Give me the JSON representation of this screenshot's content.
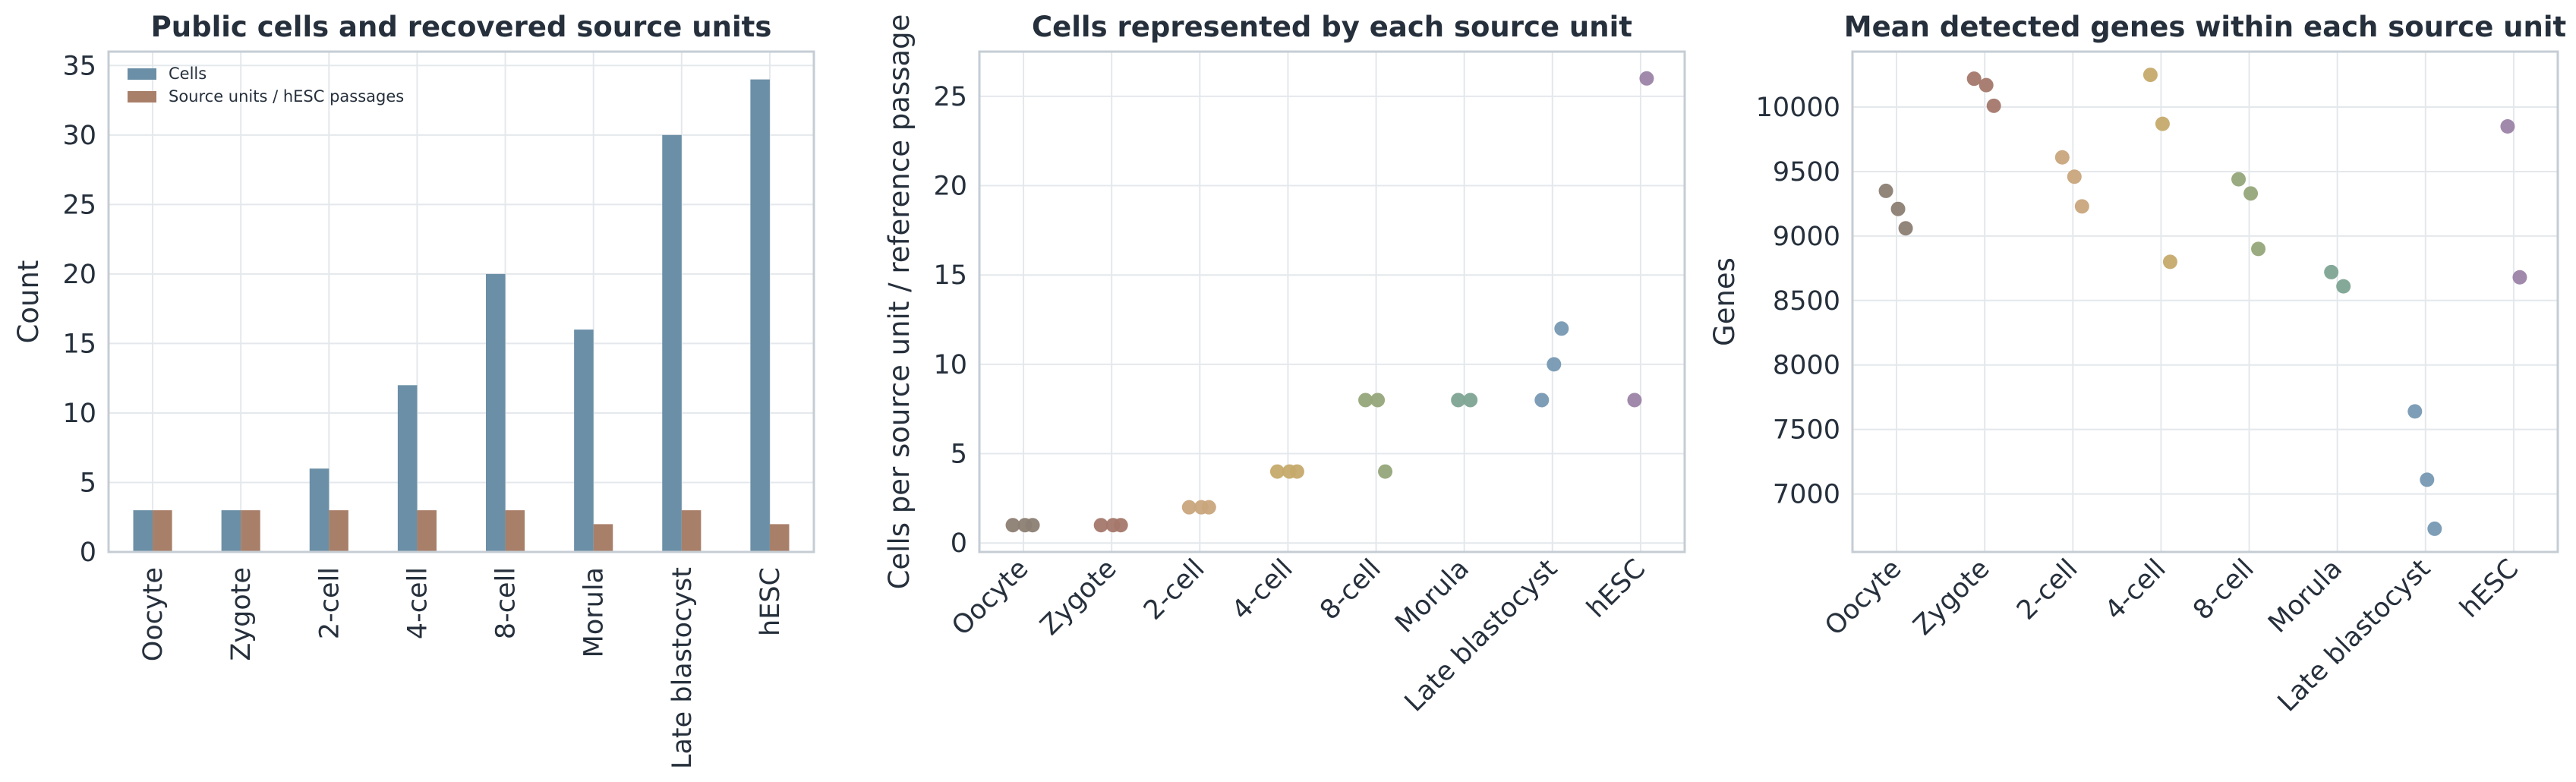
{
  "chart_data": [
    {
      "type": "bar",
      "title": "Public cells and recovered source units",
      "xlabel": "",
      "ylabel": "Count",
      "categories": [
        "Oocyte",
        "Zygote",
        "2-cell",
        "4-cell",
        "8-cell",
        "Morula",
        "Late blastocyst",
        "hESC"
      ],
      "series": [
        {
          "name": "Cells",
          "values": [
            3,
            3,
            6,
            12,
            20,
            16,
            30,
            34
          ],
          "color": "#6b8fa6"
        },
        {
          "name": "Source units / hESC passages",
          "values": [
            3,
            3,
            3,
            3,
            3,
            2,
            3,
            2
          ],
          "color": "#a87f69"
        }
      ],
      "ylim": [
        0,
        36
      ],
      "yticks": [
        0,
        5,
        10,
        15,
        20,
        25,
        30,
        35
      ],
      "grid": true,
      "legend": "top-left"
    },
    {
      "type": "scatter",
      "title": "Cells represented by each source unit",
      "xlabel": "",
      "ylabel": "Cells per source unit / reference passage",
      "categories": [
        "Oocyte",
        "Zygote",
        "2-cell",
        "4-cell",
        "8-cell",
        "Morula",
        "Late blastocyst",
        "hESC"
      ],
      "points": [
        {
          "category": "Oocyte",
          "values": [
            1,
            1,
            1
          ]
        },
        {
          "category": "Zygote",
          "values": [
            1,
            1,
            1
          ]
        },
        {
          "category": "2-cell",
          "values": [
            2,
            2,
            2
          ]
        },
        {
          "category": "4-cell",
          "values": [
            4,
            4,
            4
          ]
        },
        {
          "category": "8-cell",
          "values": [
            8,
            8,
            4
          ]
        },
        {
          "category": "Morula",
          "values": [
            8,
            8
          ]
        },
        {
          "category": "Late blastocyst",
          "values": [
            8,
            10,
            12
          ]
        },
        {
          "category": "hESC",
          "values": [
            8,
            26
          ]
        }
      ],
      "ylim": [
        -0.5,
        27.5
      ],
      "yticks": [
        0,
        5,
        10,
        15,
        20,
        25
      ],
      "grid": true
    },
    {
      "type": "scatter",
      "title": "Mean detected genes within each source unit",
      "xlabel": "",
      "ylabel": "Genes",
      "categories": [
        "Oocyte",
        "Zygote",
        "2-cell",
        "4-cell",
        "8-cell",
        "Morula",
        "Late blastocyst",
        "hESC"
      ],
      "points": [
        {
          "category": "Oocyte",
          "values": [
            9350,
            9210,
            9060
          ]
        },
        {
          "category": "Zygote",
          "values": [
            10220,
            10170,
            10010
          ]
        },
        {
          "category": "2-cell",
          "values": [
            9610,
            9460,
            9230
          ]
        },
        {
          "category": "4-cell",
          "values": [
            10250,
            9870,
            8800
          ]
        },
        {
          "category": "8-cell",
          "values": [
            9440,
            9330,
            8900
          ]
        },
        {
          "category": "Morula",
          "values": [
            8720,
            8610
          ]
        },
        {
          "category": "Late blastocyst",
          "values": [
            7640,
            7110,
            6730
          ]
        },
        {
          "category": "hESC",
          "values": [
            9850,
            8680
          ]
        }
      ],
      "ylim": [
        6550,
        10430
      ],
      "yticks": [
        7000,
        7500,
        8000,
        8500,
        9000,
        9500,
        10000
      ],
      "grid": true
    }
  ],
  "colors": {
    "categories": [
      "#8c7e73",
      "#a5786b",
      "#c9a57c",
      "#c6aa6c",
      "#96a77a",
      "#7ea493",
      "#7799b3",
      "#9c83a8"
    ]
  }
}
